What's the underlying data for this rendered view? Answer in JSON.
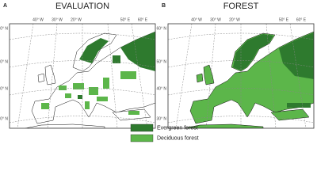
{
  "panels": [
    {
      "letter": "A",
      "title": "EVALUATION",
      "lon_labels": [
        "40° W",
        "30° W",
        "20° W",
        "50° E",
        "60° E"
      ],
      "lat_labels": [
        "60° N",
        "50° N",
        "40° N",
        "30° N"
      ]
    },
    {
      "letter": "B",
      "title": "FOREST",
      "lon_labels": [
        "40° W",
        "30° W",
        "20° W",
        "50° E",
        "60° E"
      ],
      "lat_labels": [
        "60° N",
        "50° N",
        "40° N",
        "30° N"
      ]
    }
  ],
  "legend": [
    {
      "label": "Evergreen forest",
      "color": "#2e7a2e"
    },
    {
      "label": "Deciduous forest",
      "color": "#5cb64a"
    }
  ]
}
